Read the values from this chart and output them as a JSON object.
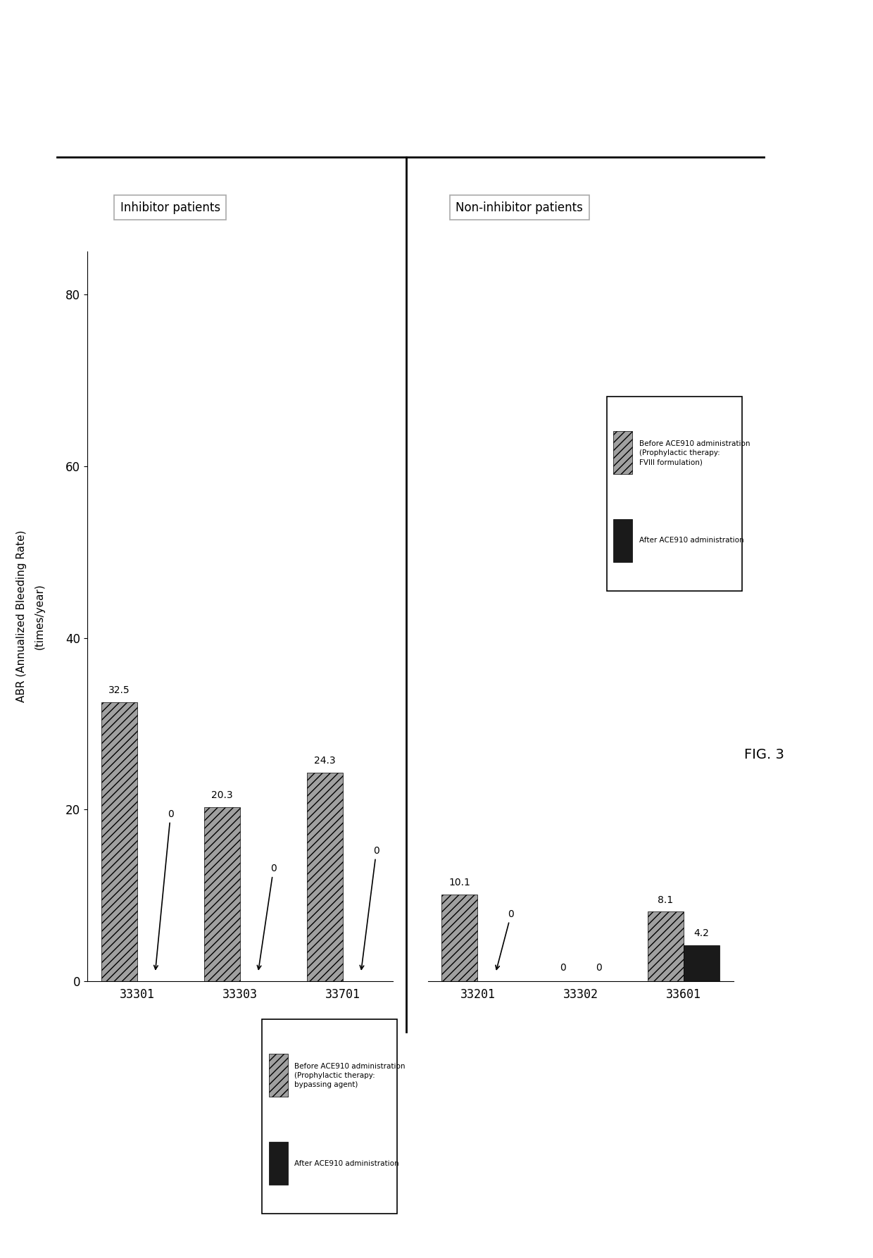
{
  "inhibitor_patients": {
    "label": "Inhibitor patients",
    "patients": [
      "33301",
      "33303",
      "33701"
    ],
    "before": [
      32.5,
      20.3,
      24.3
    ],
    "after": [
      0,
      0,
      0
    ]
  },
  "non_inhibitor_patients": {
    "label": "Non-inhibitor patients",
    "patients": [
      "33201",
      "33302",
      "33601"
    ],
    "before": [
      10.1,
      0,
      8.1
    ],
    "after": [
      0,
      0,
      4.2
    ]
  },
  "ylabel_line1": "ABR (Annualized Bleeding Rate)",
  "ylabel_line2": "(times/year)",
  "yticks": [
    0,
    20,
    40,
    60,
    80
  ],
  "ylim": [
    0,
    85
  ],
  "bar_color_before": "#a0a0a0",
  "bar_color_after": "#1a1a1a",
  "bar_width": 0.35,
  "fig_label": "FIG. 3"
}
